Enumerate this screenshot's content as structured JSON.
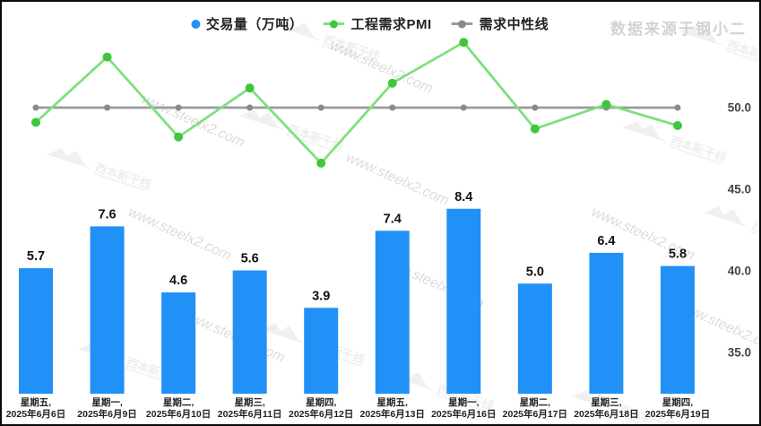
{
  "source_label": "数据来源于钢小二",
  "legend": {
    "items": [
      {
        "label": "交易量（万吨）",
        "marker": "dot",
        "color": "#2191f8",
        "marker_color": "#2191f8"
      },
      {
        "label": "工程需求PMI",
        "marker": "line-dot",
        "color": "#7ee07e",
        "marker_color": "#3cc73c"
      },
      {
        "label": "需求中性线",
        "marker": "line-dot",
        "color": "#9a9a9a",
        "marker_color": "#8a8a8a"
      }
    ]
  },
  "watermarks": {
    "url_text": "www.steelx2.com",
    "logo_text": "西本新干线"
  },
  "chart_data": {
    "type": "bar+line combo",
    "title": "",
    "grid": false,
    "legend_position": "top-center",
    "categories": [
      [
        "星期五,",
        "2025年6月6日"
      ],
      [
        "星期一,",
        "2025年6月9日"
      ],
      [
        "星期二,",
        "2025年6月10日"
      ],
      [
        "星期三,",
        "2025年6月11日"
      ],
      [
        "星期四,",
        "2025年6月12日"
      ],
      [
        "星期五,",
        "2025年6月13日"
      ],
      [
        "星期一,",
        "2025年6月16日"
      ],
      [
        "星期二,",
        "2025年6月17日"
      ],
      [
        "星期三,",
        "2025年6月18日"
      ],
      [
        "星期四,",
        "2025年6月19日"
      ]
    ],
    "series": [
      {
        "name": "交易量（万吨）",
        "type": "bar",
        "color": "#2191f8",
        "label_color": "#111111",
        "labels_visible": true,
        "values": [
          5.7,
          7.6,
          4.6,
          5.6,
          3.9,
          7.4,
          8.4,
          5.0,
          6.4,
          5.8
        ]
      },
      {
        "name": "工程需求PMI",
        "type": "line",
        "line_color": "#7ee07e",
        "marker_color": "#3cc73c",
        "values": [
          49.1,
          53.1,
          48.2,
          51.2,
          46.6,
          51.5,
          54.0,
          48.7,
          50.2,
          48.9
        ]
      },
      {
        "name": "需求中性线",
        "type": "line",
        "line_color": "#9a9a9a",
        "marker_color": "#8a8a8a",
        "values": [
          50.0,
          50.0,
          50.0,
          50.0,
          50.0,
          50.0,
          50.0,
          50.0,
          50.0,
          50.0
        ]
      }
    ],
    "left_axis": {
      "visible": false,
      "implied_range": [
        0,
        9
      ]
    },
    "right_axis": {
      "ticks": [
        50.0,
        45.0,
        40.0,
        35.0
      ],
      "labels": [
        "50.0",
        "45.0",
        "40.0",
        "35.0"
      ],
      "color": "#444444"
    }
  }
}
